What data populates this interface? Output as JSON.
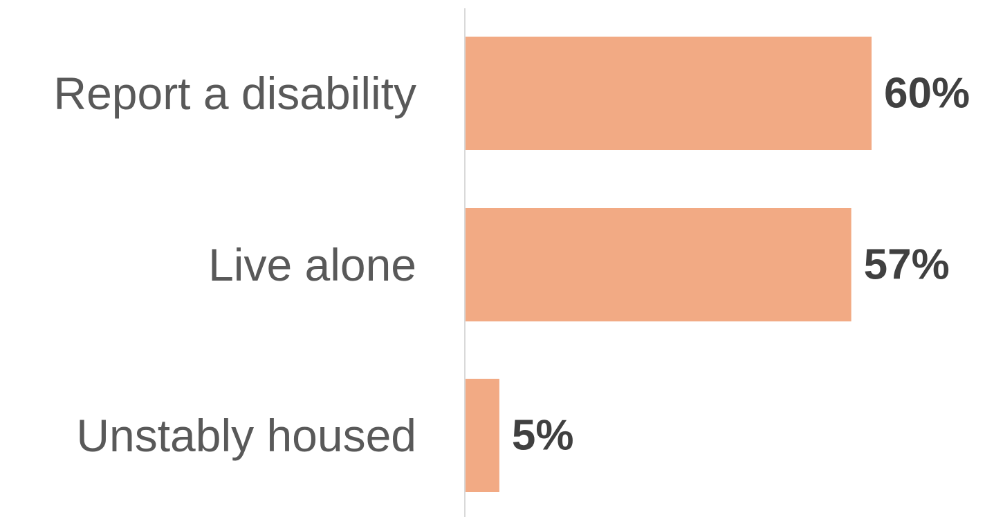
{
  "chart_data": {
    "type": "bar",
    "orientation": "horizontal",
    "categories": [
      "Report a disability",
      "Live alone",
      "Unstably housed"
    ],
    "values": [
      60,
      57,
      5
    ],
    "value_labels": [
      "60%",
      "57%",
      "5%"
    ],
    "unit": "%",
    "xlim": [
      0,
      60
    ],
    "grid": false,
    "legend": "none",
    "bar_color": "#F2AA84",
    "axis_color": "#D9D9D9"
  }
}
